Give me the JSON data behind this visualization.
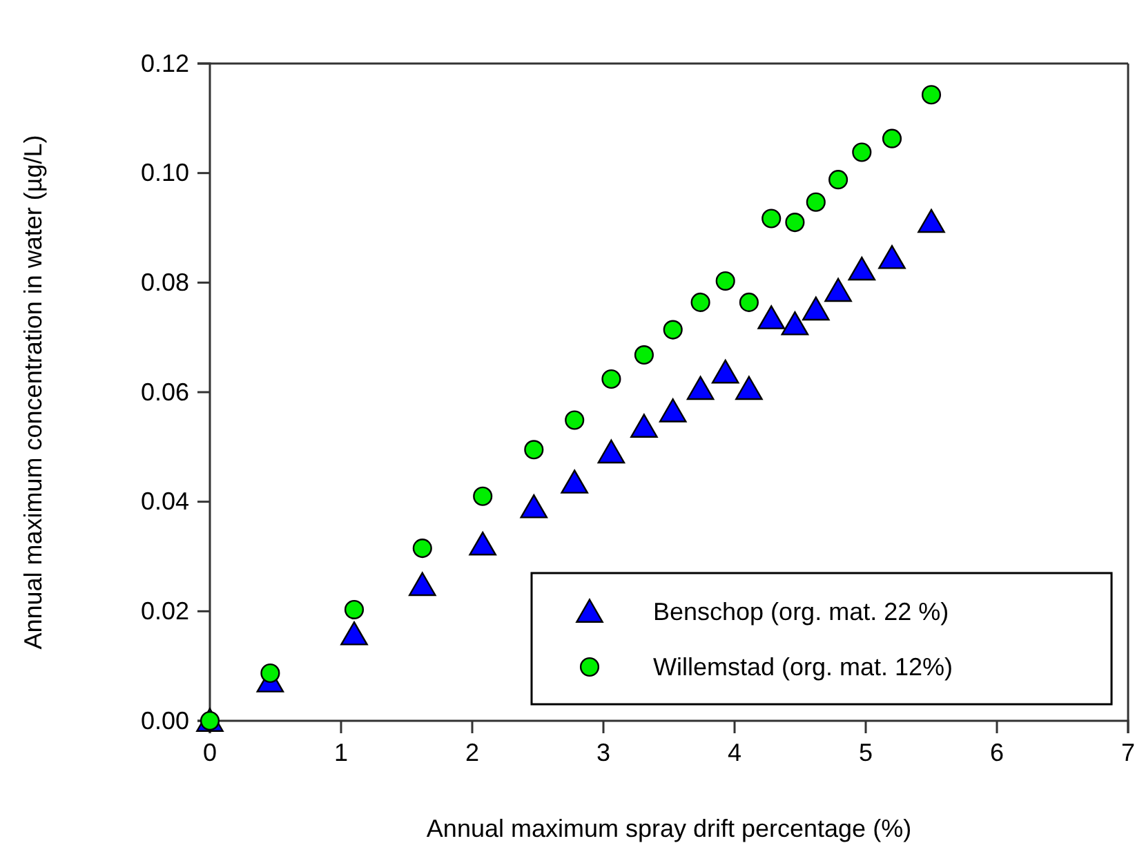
{
  "chart_data": {
    "type": "scatter",
    "xlabel": "Annual maximum spray drift percentage (%)",
    "ylabel": "Annual maximum concentration in water (µg/L)",
    "xlim": [
      0,
      7
    ],
    "xticks": [
      0,
      1,
      2,
      3,
      4,
      5,
      6,
      7
    ],
    "ylim": [
      0,
      0.12
    ],
    "yticks": [
      {
        "value": 0,
        "label": "0.00"
      },
      {
        "value": 0.02,
        "label": "0.02"
      },
      {
        "value": 0.04,
        "label": "0.04"
      },
      {
        "value": 0.06,
        "label": "0.06"
      },
      {
        "value": 0.08,
        "label": "0.08"
      },
      {
        "value": 0.1,
        "label": "0.10"
      },
      {
        "value": 0.12,
        "label": "0.12"
      }
    ],
    "x": [
      0,
      0.46,
      1.1,
      1.62,
      2.08,
      2.47,
      2.78,
      3.06,
      3.31,
      3.53,
      3.74,
      3.93,
      4.11,
      4.28,
      4.46,
      4.62,
      4.79,
      4.97,
      5.2,
      5.5
    ],
    "legend": "bottom right",
    "grid": false,
    "series": [
      {
        "name": "Benschop (org. mat. 22 %)",
        "color": "#0000ff",
        "marker": "triangle",
        "values": [
          0,
          0.0072,
          0.0158,
          0.0248,
          0.0322,
          0.039,
          0.0435,
          0.049,
          0.0537,
          0.0565,
          0.0606,
          0.0636,
          0.0606,
          0.0735,
          0.0724,
          0.0751,
          0.0785,
          0.0824,
          0.0845,
          0.0911
        ]
      },
      {
        "name": "Willemstad (org. mat. 12%)",
        "color": "#00ee00",
        "marker": "circle",
        "values": [
          0,
          0.0087,
          0.0203,
          0.0315,
          0.041,
          0.0495,
          0.0549,
          0.0624,
          0.0668,
          0.0714,
          0.0764,
          0.0803,
          0.0764,
          0.0917,
          0.091,
          0.0947,
          0.0988,
          0.1038,
          0.1063,
          0.1143
        ]
      }
    ]
  }
}
